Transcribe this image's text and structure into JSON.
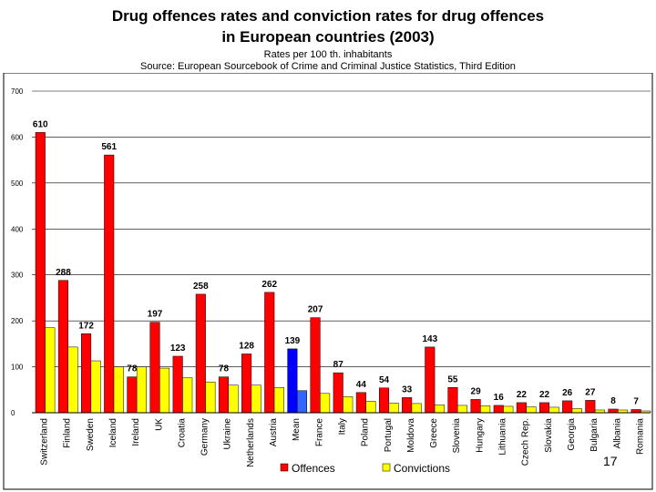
{
  "header": {
    "title_line1": "Drug offences rates and conviction rates for drug offences",
    "title_line2": "in European countries (2003)",
    "subtitle": "Rates per 100 th. inhabitants",
    "source": "Source: European Sourcebook of Crime and Criminal Justice Statistics, Third Edition"
  },
  "page_number": "17",
  "colors": {
    "offences": "#ff0000",
    "convictions": "#ffff00",
    "mean_offences": "#0000ff",
    "mean_convictions": "#3366ff"
  },
  "chart_data": {
    "type": "bar",
    "title": "Drug offences rates and conviction rates for drug offences in European countries (2003)",
    "ylabel": "Rates per 100 th. inhabitants",
    "ylim": [
      0,
      700
    ],
    "yticks": [
      0,
      100,
      200,
      300,
      400,
      500,
      600,
      700
    ],
    "categories": [
      "Switzerland",
      "Finland",
      "Sweden",
      "Iceland",
      "Ireland",
      "UK",
      "Croatia",
      "Germany",
      "Ukraine",
      "Netherlands",
      "Austria",
      "Mean",
      "France",
      "Italy",
      "Poland",
      "Portugal",
      "Moldova",
      "Greece",
      "Slovenia",
      "Hungary",
      "Lithuania",
      "Czech Rep.",
      "Slovakia",
      "Georgia",
      "Bulgaria",
      "Albania",
      "Romania"
    ],
    "series": [
      {
        "name": "Offences",
        "values": [
          610,
          288,
          172,
          561,
          78,
          197,
          123,
          258,
          78,
          128,
          262,
          139,
          207,
          87,
          44,
          54,
          33,
          143,
          55,
          29,
          16,
          22,
          22,
          26,
          27,
          8,
          7
        ]
      },
      {
        "name": "Convictions",
        "values": [
          185,
          143,
          113,
          100,
          100,
          97,
          76,
          67,
          60,
          60,
          55,
          48,
          42,
          35,
          25,
          21,
          20,
          17,
          16,
          15,
          14,
          13,
          12,
          9,
          6,
          6,
          4
        ]
      }
    ],
    "data_labels": [
      "610",
      "288",
      "172",
      "561",
      "78",
      "197",
      "123",
      "258",
      "78",
      "128",
      "262",
      "139",
      "207",
      "87",
      "44",
      "54",
      "33",
      "143",
      "55",
      "29",
      "16",
      "22",
      "22",
      "26",
      "27",
      "8",
      "7"
    ],
    "legend": {
      "position": "bottom-center",
      "entries": [
        "Offences",
        "Convictions"
      ]
    }
  }
}
